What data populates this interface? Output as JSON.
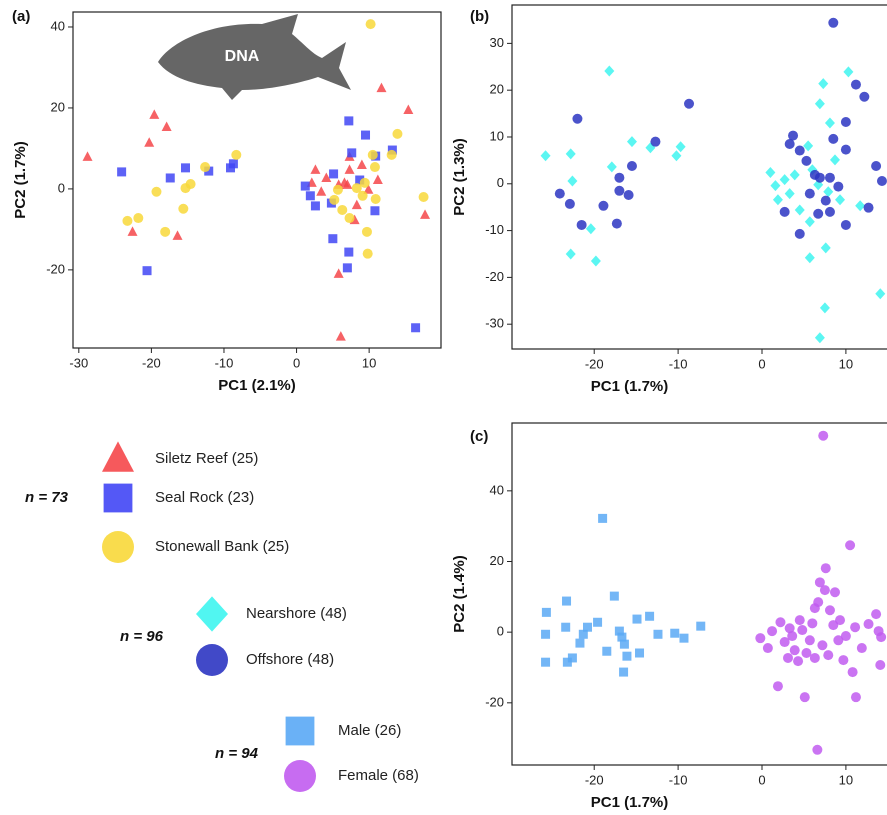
{
  "chart_data": [
    {
      "type": "scatter",
      "panel_label": "(a)",
      "icon_label": "DNA",
      "x_label": "PC1 (2.1%)",
      "y_label": "PC2 (1.7%)",
      "xlim": [
        -30.8,
        19.9
      ],
      "ylim": [
        -39.3,
        43.7
      ],
      "xticks": [
        -30,
        -20,
        -10,
        0,
        10
      ],
      "yticks": [
        -20,
        0,
        20,
        40
      ],
      "n_label": "n = 73",
      "series": [
        {
          "name": "Siletz Reef (25)",
          "color": "#f5474a",
          "marker": "triangle",
          "x": [
            -28.8,
            -19.6,
            -17.9,
            -20.3,
            -22.6,
            -16.4,
            11.7,
            15.4,
            17.7,
            6.1,
            5.8,
            2.6,
            4.1,
            2.1,
            3.4,
            5.8,
            7.3,
            7.3,
            9.0,
            7.0,
            8.3,
            9.9,
            11.2,
            8.0,
            6.6
          ],
          "y": [
            7.9,
            18.3,
            15.3,
            11.4,
            -10.6,
            -11.6,
            24.9,
            19.5,
            -6.4,
            -36.5,
            -21,
            4.7,
            2.7,
            1.5,
            -0.7,
            1,
            7.9,
            4.7,
            5.9,
            1,
            -4,
            -0.2,
            2.2,
            -7.7,
            1.5
          ]
        },
        {
          "name": "Seal Rock (23)",
          "color": "#4146f5",
          "marker": "square",
          "x": [
            -24.1,
            -20.6,
            -17.4,
            -15.3,
            -12.1,
            -9.1,
            -8.7,
            1.2,
            1.9,
            2.6,
            4.8,
            5.1,
            7.2,
            7.6,
            9.5,
            10.9,
            8.7,
            10.8,
            5.0,
            7.2,
            7.0,
            13.2,
            16.4
          ],
          "y": [
            4.2,
            -20.2,
            2.7,
            5.2,
            4.4,
            5.2,
            6.2,
            0.7,
            -1.7,
            -4.2,
            -3.5,
            3.7,
            16.8,
            8.9,
            13.3,
            8.1,
            2.2,
            -5.4,
            -12.3,
            -15.6,
            -19.5,
            9.6,
            -34.3
          ]
        },
        {
          "name": "Stonewall Bank (25)",
          "color": "#f8d83a",
          "marker": "circle",
          "x": [
            -23.3,
            -21.8,
            -19.3,
            -18.1,
            -15.6,
            -15.3,
            -14.6,
            -12.6,
            -8.3,
            10.2,
            13.9,
            13.1,
            10.5,
            10.8,
            9.4,
            9.1,
            10.9,
            17.5,
            5.2,
            6.3,
            7.3,
            9.7,
            9.8,
            8.3,
            5.7
          ],
          "y": [
            -7.9,
            -7.2,
            -0.7,
            -10.6,
            -4.9,
            0.2,
            1.2,
            5.4,
            8.4,
            40.7,
            13.6,
            8.4,
            8.4,
            5.4,
            1.5,
            -1.7,
            -2.5,
            -2,
            -2.7,
            -5.2,
            -7.2,
            -10.6,
            -16,
            0.2,
            -0.2
          ]
        }
      ]
    },
    {
      "type": "scatter",
      "panel_label": "(b)",
      "x_label": "PC1 (1.7%)",
      "y_label": "PC2 (1.3%)",
      "xlim": [
        -29.8,
        14.9
      ],
      "ylim": [
        -35.3,
        38.2
      ],
      "xticks": [
        -20,
        -10,
        0,
        10
      ],
      "yticks": [
        -30,
        -20,
        -10,
        0,
        10,
        20,
        30
      ],
      "n_label": "n = 96",
      "series": [
        {
          "name": "Nearshore (48)",
          "color": "#3ef5f0",
          "marker": "diamond",
          "x": [
            -25.8,
            -22.8,
            -22.6,
            -22.8,
            -19.8,
            -20.4,
            -18.2,
            -17.9,
            -15.5,
            -13.3,
            -10.2,
            -9.7,
            5.7,
            5.7,
            6.9,
            7.5,
            7.6,
            7.3,
            10.3,
            8.1,
            6.9,
            14.1,
            11.7,
            1.0,
            1.6,
            2.7,
            3.3,
            4.5,
            3.9,
            6.0,
            6.7,
            7.9,
            8.7,
            9.3,
            5.5,
            1.9
          ],
          "y": [
            6,
            6.4,
            0.6,
            -15,
            -16.5,
            -9.6,
            24.1,
            3.6,
            9,
            7.7,
            6,
            7.9,
            -8.1,
            -15.8,
            -32.9,
            -26.5,
            -13.7,
            21.4,
            23.9,
            13,
            17.1,
            -23.5,
            -4.7,
            2.4,
            -0.4,
            0.9,
            -2.1,
            -5.6,
            1.9,
            3,
            -0.2,
            -1.7,
            5.1,
            -3.4,
            8.1,
            -3.4
          ]
        },
        {
          "name": "Offshore (48)",
          "color": "#2c35c2",
          "marker": "circle",
          "x": [
            -24.1,
            -22.9,
            -22.0,
            -21.5,
            -18.9,
            -17.0,
            -17.0,
            -17.3,
            -15.5,
            -15.9,
            -12.7,
            -8.7,
            8.5,
            11.2,
            12.2,
            13.6,
            14.3,
            3.7,
            4.5,
            5.3,
            6.3,
            6.9,
            8.1,
            8.5,
            10.0,
            10.0,
            5.7,
            6.7,
            8.1,
            10.0,
            4.5,
            2.7,
            3.3,
            7.6,
            9.1,
            12.7
          ],
          "y": [
            -2.1,
            -4.3,
            13.9,
            -8.8,
            -4.7,
            1.3,
            -1.5,
            -8.5,
            3.8,
            -2.4,
            9,
            17.1,
            34.4,
            21.2,
            18.6,
            3.8,
            0.6,
            10.3,
            7.1,
            4.9,
            1.9,
            1.3,
            1.3,
            9.6,
            13.2,
            7.3,
            -2.1,
            -6.4,
            -6,
            -8.8,
            -10.7,
            -6,
            8.5,
            -3.6,
            -0.6,
            -5.1
          ]
        }
      ]
    },
    {
      "type": "scatter",
      "panel_label": "(c)",
      "x_label": "PC1 (1.7%)",
      "y_label": "PC2 (1.4%)",
      "xlim": [
        -29.8,
        14.9
      ],
      "ylim": [
        -37.6,
        59.2
      ],
      "xticks": [
        -20,
        -10,
        0,
        10
      ],
      "yticks": [
        -20,
        0,
        20,
        40
      ],
      "n_label": "n = 94",
      "series": [
        {
          "name": "Male (26)",
          "color": "#5aa9f5",
          "marker": "square",
          "x": [
            -25.8,
            -25.7,
            -25.8,
            -23.3,
            -23.4,
            -23.2,
            -22.6,
            -21.7,
            -21.3,
            -20.8,
            -19.6,
            -19.0,
            -18.5,
            -17.6,
            -17.0,
            -16.7,
            -16.4,
            -16.5,
            -16.1,
            -14.6,
            -14.9,
            -13.4,
            -12.4,
            -10.4,
            -9.3,
            -7.3
          ],
          "y": [
            -0.6,
            5.6,
            -8.5,
            8.8,
            1.4,
            -8.5,
            -7.3,
            -3.1,
            -0.6,
            1.4,
            2.8,
            32.2,
            -5.4,
            10.2,
            0.3,
            -1.4,
            -3.4,
            -11.3,
            -6.8,
            -5.9,
            3.7,
            4.5,
            -0.6,
            -0.3,
            -1.7,
            1.7
          ]
        },
        {
          "name": "Female (68)",
          "color": "#c15cf0",
          "marker": "circle",
          "x": [
            0.7,
            1.2,
            1.9,
            3.3,
            3.9,
            4.5,
            5.1,
            5.7,
            6.3,
            6.6,
            7.3,
            6.9,
            7.5,
            7.6,
            8.1,
            8.5,
            9.1,
            9.7,
            10.5,
            10.8,
            11.2,
            11.9,
            12.7,
            13.6,
            13.9,
            14.2,
            14.1,
            2.7,
            3.6,
            4.3,
            4.8,
            5.3,
            6.0,
            6.7,
            7.2,
            7.9,
            8.7,
            9.3,
            10.0,
            11.1,
            2.2,
            3.1,
            6.3,
            -0.2
          ],
          "y": [
            -4.5,
            0.3,
            -15.3,
            1.1,
            -5.1,
            3.4,
            -18.4,
            -2.3,
            6.8,
            -33.3,
            55.6,
            14.1,
            11.9,
            18.1,
            6.2,
            2,
            -2.3,
            -7.9,
            24.6,
            -11.3,
            -18.4,
            -4.5,
            2.3,
            5.1,
            0.3,
            -1.4,
            -9.3,
            -2.8,
            -1.1,
            -8.2,
            0.6,
            -5.9,
            2.5,
            8.5,
            -3.7,
            -6.5,
            11.3,
            3.4,
            -1.1,
            1.4,
            2.8,
            -7.3,
            -7.3,
            -1.7
          ]
        }
      ]
    }
  ]
}
